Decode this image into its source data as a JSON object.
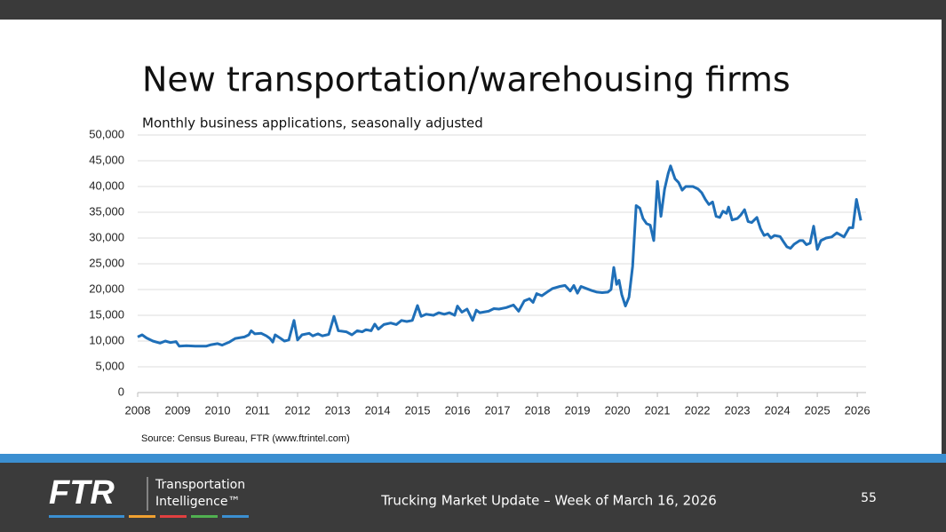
{
  "slide": {
    "footer": "Trucking Market Update – Week of March 16, 2026",
    "page": "55",
    "logo": "FTR",
    "logo_line1": "Transportation",
    "logo_line2": "Intelligence™"
  },
  "chart_data": {
    "type": "line",
    "title": "New transportation/warehousing firms",
    "subtitle": "Monthly business applications, seasonally adjusted",
    "source": "Source: Census Bureau, FTR (www.ftrintel.com)",
    "color": "#1f6fb8",
    "grid": true,
    "xlim": [
      2008,
      2026.22
    ],
    "xticks": [
      2008,
      2009,
      2010,
      2011,
      2012,
      2013,
      2014,
      2015,
      2016,
      2017,
      2018,
      2019,
      2020,
      2021,
      2022,
      2023,
      2024,
      2025,
      2026
    ],
    "ylim": [
      0,
      50000
    ],
    "yticks": [
      0,
      {
        "value": 5000,
        "label": "5,000"
      },
      {
        "value": 10000,
        "label": "10,000"
      },
      {
        "value": 15000,
        "label": "15,000"
      },
      {
        "value": 20000,
        "label": "20,000"
      },
      {
        "value": 25000,
        "label": "25,000"
      },
      {
        "value": 30000,
        "label": "30,000"
      },
      {
        "value": 35000,
        "label": "35,000"
      },
      {
        "value": 40000,
        "label": "40,000"
      },
      {
        "value": 45000,
        "label": "45,000"
      },
      {
        "value": 50000,
        "label": "50,000"
      }
    ],
    "x": [
      2008.0,
      2008.11,
      2008.22,
      2008.38,
      2008.56,
      2008.69,
      2008.82,
      2008.96,
      2009.04,
      2009.22,
      2009.44,
      2009.71,
      2009.84,
      2010.0,
      2010.11,
      2010.29,
      2010.44,
      2010.67,
      2010.78,
      2010.84,
      2010.93,
      2011.09,
      2011.22,
      2011.31,
      2011.38,
      2011.44,
      2011.58,
      2011.67,
      2011.78,
      2011.91,
      2012.0,
      2012.11,
      2012.29,
      2012.38,
      2012.51,
      2012.62,
      2012.78,
      2012.91,
      2013.02,
      2013.22,
      2013.36,
      2013.49,
      2013.62,
      2013.71,
      2013.84,
      2013.93,
      2014.02,
      2014.16,
      2014.33,
      2014.47,
      2014.6,
      2014.73,
      2014.87,
      2015.0,
      2015.09,
      2015.22,
      2015.4,
      2015.53,
      2015.67,
      2015.8,
      2015.93,
      2016.0,
      2016.11,
      2016.24,
      2016.38,
      2016.47,
      2016.56,
      2016.78,
      2016.91,
      2017.04,
      2017.22,
      2017.4,
      2017.53,
      2017.67,
      2017.8,
      2017.89,
      2017.98,
      2018.11,
      2018.24,
      2018.38,
      2018.56,
      2018.69,
      2018.82,
      2018.91,
      2019.0,
      2019.09,
      2019.22,
      2019.36,
      2019.49,
      2019.62,
      2019.76,
      2019.84,
      2019.91,
      2019.98,
      2020.04,
      2020.11,
      2020.2,
      2020.29,
      2020.38,
      2020.47,
      2020.56,
      2020.64,
      2020.73,
      2020.82,
      2020.91,
      2021.0,
      2021.09,
      2021.18,
      2021.27,
      2021.33,
      2021.44,
      2021.53,
      2021.62,
      2021.71,
      2021.89,
      2022.02,
      2022.11,
      2022.2,
      2022.29,
      2022.38,
      2022.47,
      2022.56,
      2022.64,
      2022.73,
      2022.78,
      2022.87,
      2023.0,
      2023.09,
      2023.18,
      2023.27,
      2023.36,
      2023.49,
      2023.58,
      2023.67,
      2023.76,
      2023.84,
      2023.93,
      2024.07,
      2024.16,
      2024.24,
      2024.33,
      2024.42,
      2024.56,
      2024.64,
      2024.73,
      2024.82,
      2024.91,
      2025.0,
      2025.09,
      2025.22,
      2025.36,
      2025.49,
      2025.67,
      2025.8,
      2025.89,
      2025.98,
      2026.09
    ],
    "values": [
      10800,
      11200,
      10600,
      10000,
      9600,
      10000,
      9700,
      9900,
      9000,
      9100,
      9000,
      9000,
      9300,
      9500,
      9200,
      9800,
      10500,
      10800,
      11200,
      12000,
      11400,
      11500,
      11000,
      10500,
      9800,
      11200,
      10500,
      10000,
      10200,
      14000,
      10200,
      11200,
      11500,
      11000,
      11400,
      11000,
      11300,
      14800,
      12000,
      11800,
      11200,
      12000,
      11800,
      12200,
      12000,
      13300,
      12300,
      13200,
      13500,
      13200,
      14000,
      13800,
      14000,
      16900,
      14800,
      15200,
      15000,
      15500,
      15200,
      15500,
      15000,
      16800,
      15600,
      16200,
      14000,
      16000,
      15500,
      15800,
      16300,
      16200,
      16500,
      17000,
      15800,
      17800,
      18200,
      17500,
      19200,
      18800,
      19500,
      20200,
      20600,
      20800,
      19700,
      20800,
      19300,
      20600,
      20200,
      19800,
      19500,
      19400,
      19500,
      20000,
      24300,
      21000,
      21800,
      19000,
      16800,
      18500,
      24500,
      36300,
      35800,
      33800,
      32800,
      32500,
      29500,
      41000,
      34200,
      39500,
      42500,
      44000,
      41500,
      40800,
      39300,
      40000,
      40000,
      39500,
      38800,
      37500,
      36500,
      37000,
      34200,
      34000,
      35200,
      34800,
      36000,
      33500,
      33800,
      34500,
      35500,
      33200,
      33000,
      34000,
      31800,
      30500,
      30800,
      30000,
      30500,
      30300,
      29200,
      28300,
      28000,
      28800,
      29500,
      29500,
      28700,
      29000,
      32300,
      27800,
      29500,
      30000,
      30200,
      31000,
      30200,
      32000,
      32000,
      37500,
      33400
    ]
  }
}
